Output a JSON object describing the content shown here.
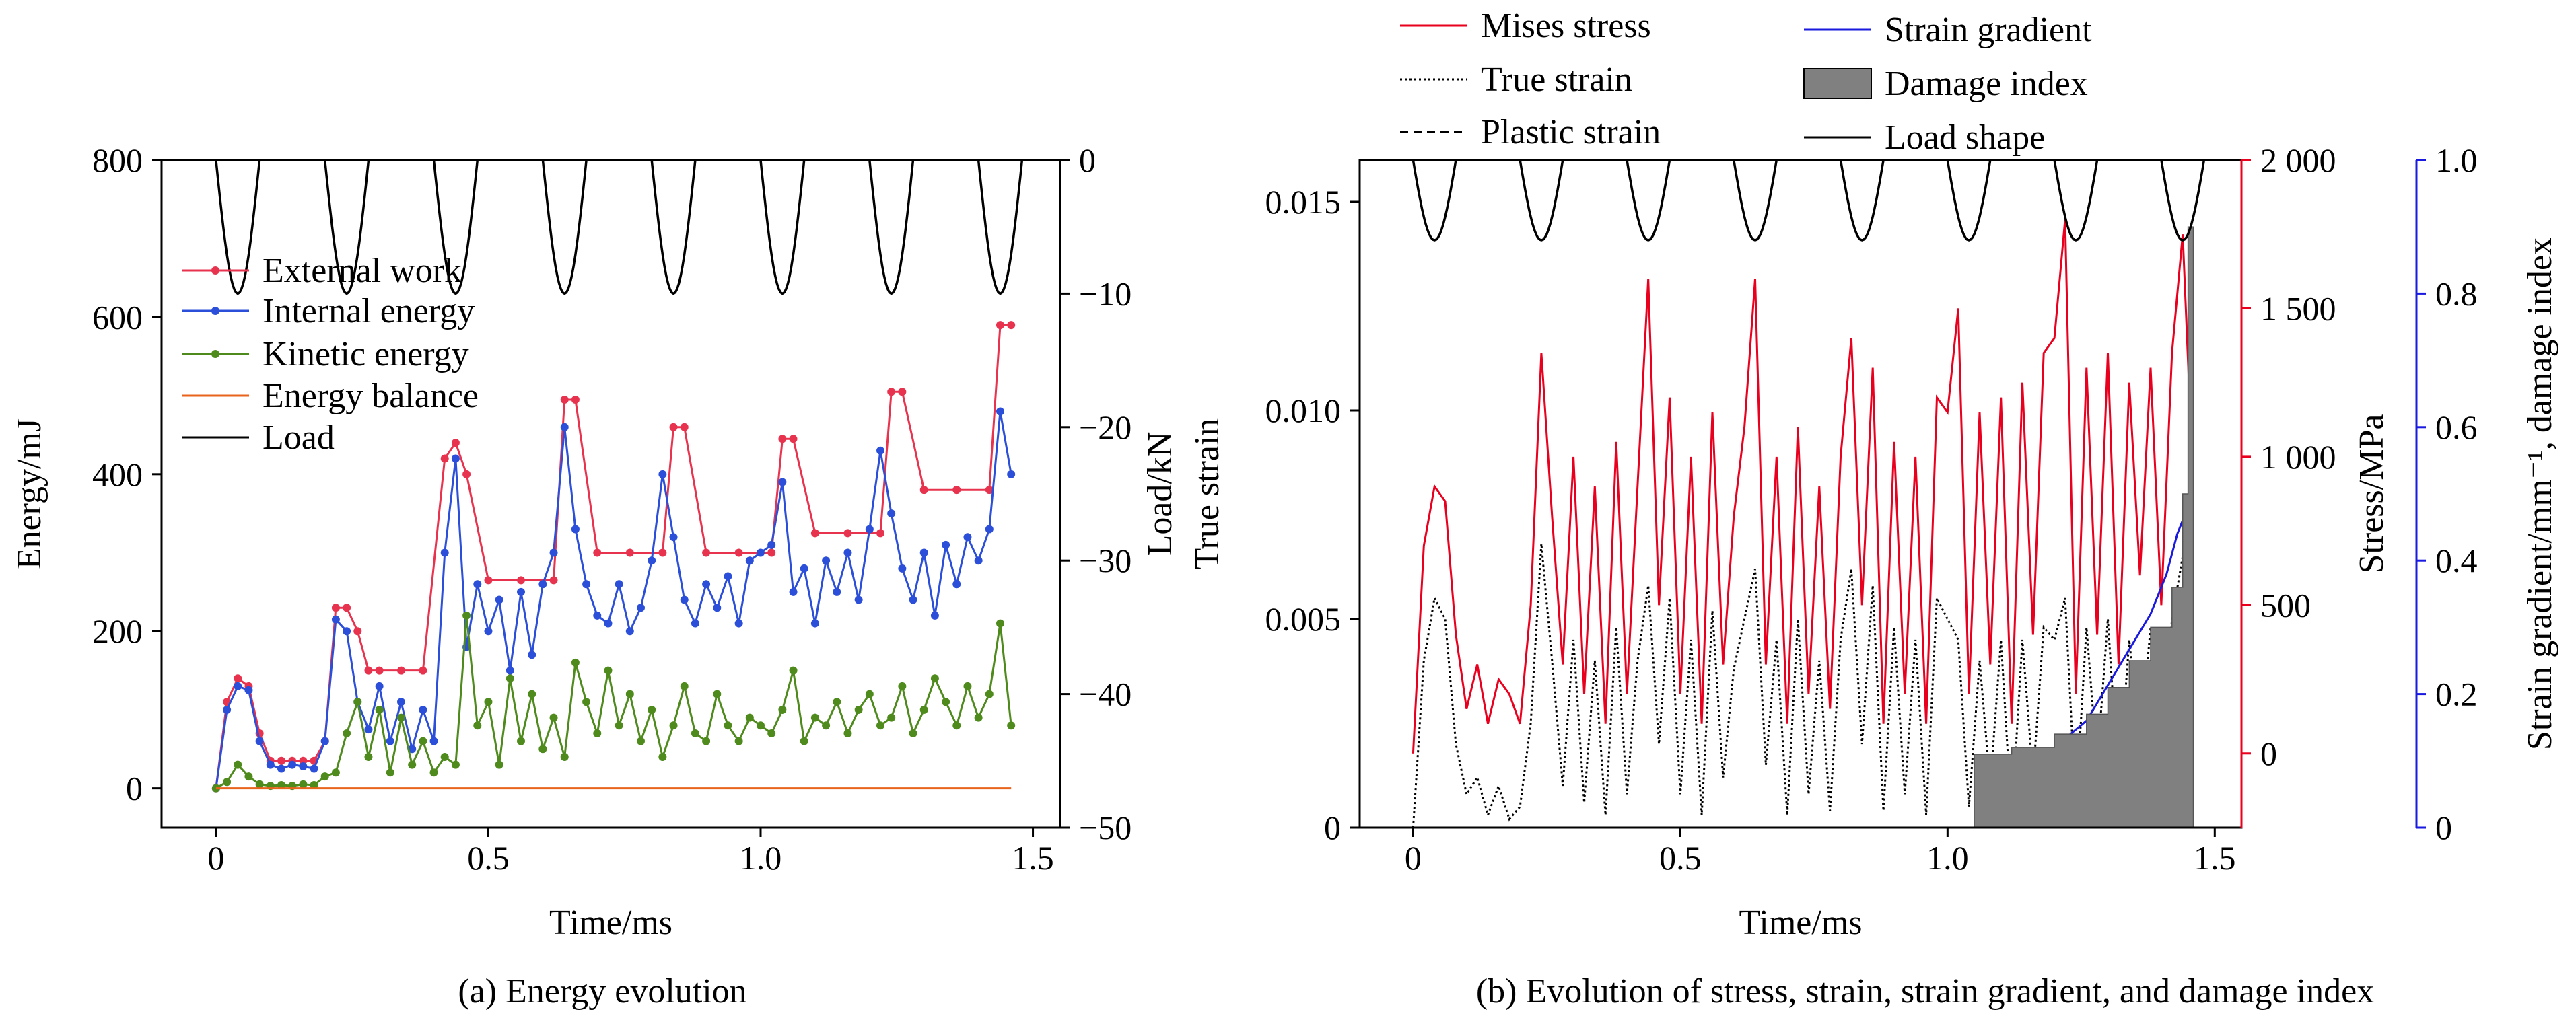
{
  "chart_data": [
    {
      "type": "line",
      "caption": "(a) Energy evolution",
      "xlabel": "Time/ms",
      "ylabel": "Energy/mJ",
      "y2label": "Load/kN",
      "xlim": [
        -0.1,
        1.55
      ],
      "ylim": [
        -50,
        800
      ],
      "y2lim": [
        -50,
        0
      ],
      "xticks": [
        0,
        0.5,
        1.0,
        1.5
      ],
      "xtick_labels": [
        "0",
        "0.5",
        "1.0",
        "1.5"
      ],
      "yticks": [
        0,
        200,
        400,
        600,
        800
      ],
      "ytick_labels": [
        "0",
        "200",
        "400",
        "600",
        "800"
      ],
      "y2ticks": [
        0,
        -10,
        -20,
        -30,
        -40,
        -50
      ],
      "y2tick_labels": [
        "0",
        "−10",
        "−20",
        "−30",
        "−40",
        "−50"
      ],
      "legend_position": "upper-left",
      "pulses": {
        "axis": "y2",
        "starts": [
          0,
          0.2,
          0.4,
          0.6,
          0.8,
          1.0,
          1.2,
          1.4
        ],
        "width": 0.08,
        "base": 0,
        "peak": -10
      },
      "series": [
        {
          "name": "External work",
          "color": "#e8334f",
          "x": [
            0,
            0.02,
            0.04,
            0.06,
            0.08,
            0.1,
            0.12,
            0.14,
            0.16,
            0.18,
            0.2,
            0.22,
            0.24,
            0.26,
            0.28,
            0.3,
            0.34,
            0.38,
            0.42,
            0.44,
            0.46,
            0.5,
            0.56,
            0.62,
            0.64,
            0.66,
            0.7,
            0.76,
            0.82,
            0.84,
            0.86,
            0.9,
            0.96,
            1.02,
            1.04,
            1.06,
            1.1,
            1.16,
            1.22,
            1.24,
            1.26,
            1.3,
            1.36,
            1.42,
            1.44,
            1.46
          ],
          "y": [
            0,
            110,
            140,
            130,
            70,
            35,
            35,
            35,
            35,
            35,
            60,
            230,
            230,
            200,
            150,
            150,
            150,
            150,
            420,
            440,
            400,
            265,
            265,
            265,
            495,
            495,
            300,
            300,
            300,
            460,
            460,
            300,
            300,
            300,
            445,
            445,
            325,
            325,
            325,
            505,
            505,
            380,
            380,
            380,
            590,
            590
          ]
        },
        {
          "name": "Internal energy",
          "color": "#2b4fd8",
          "x": [
            0,
            0.02,
            0.04,
            0.06,
            0.08,
            0.1,
            0.12,
            0.14,
            0.16,
            0.18,
            0.2,
            0.22,
            0.24,
            0.26,
            0.28,
            0.3,
            0.32,
            0.34,
            0.36,
            0.38,
            0.4,
            0.42,
            0.44,
            0.46,
            0.48,
            0.5,
            0.52,
            0.54,
            0.56,
            0.58,
            0.6,
            0.62,
            0.64,
            0.66,
            0.68,
            0.7,
            0.72,
            0.74,
            0.76,
            0.78,
            0.8,
            0.82,
            0.84,
            0.86,
            0.88,
            0.9,
            0.92,
            0.94,
            0.96,
            0.98,
            1.0,
            1.02,
            1.04,
            1.06,
            1.08,
            1.1,
            1.12,
            1.14,
            1.16,
            1.18,
            1.2,
            1.22,
            1.24,
            1.26,
            1.28,
            1.3,
            1.32,
            1.34,
            1.36,
            1.38,
            1.4,
            1.42,
            1.44,
            1.46
          ],
          "y": [
            0,
            100,
            130,
            125,
            60,
            30,
            25,
            30,
            28,
            25,
            60,
            215,
            200,
            110,
            75,
            130,
            60,
            110,
            50,
            100,
            60,
            300,
            420,
            180,
            260,
            200,
            240,
            150,
            250,
            170,
            260,
            300,
            460,
            330,
            260,
            220,
            210,
            260,
            200,
            230,
            290,
            400,
            320,
            240,
            210,
            260,
            230,
            270,
            210,
            290,
            300,
            310,
            390,
            250,
            280,
            210,
            290,
            250,
            300,
            240,
            330,
            430,
            350,
            280,
            240,
            300,
            220,
            310,
            260,
            320,
            290,
            330,
            480,
            400
          ]
        },
        {
          "name": "Kinetic energy",
          "color": "#4e8a1c",
          "x": [
            0,
            0.02,
            0.04,
            0.06,
            0.08,
            0.1,
            0.12,
            0.14,
            0.16,
            0.18,
            0.2,
            0.22,
            0.24,
            0.26,
            0.28,
            0.3,
            0.32,
            0.34,
            0.36,
            0.38,
            0.4,
            0.42,
            0.44,
            0.46,
            0.48,
            0.5,
            0.52,
            0.54,
            0.56,
            0.58,
            0.6,
            0.62,
            0.64,
            0.66,
            0.68,
            0.7,
            0.72,
            0.74,
            0.76,
            0.78,
            0.8,
            0.82,
            0.84,
            0.86,
            0.88,
            0.9,
            0.92,
            0.94,
            0.96,
            0.98,
            1.0,
            1.02,
            1.04,
            1.06,
            1.08,
            1.1,
            1.12,
            1.14,
            1.16,
            1.18,
            1.2,
            1.22,
            1.24,
            1.26,
            1.28,
            1.3,
            1.32,
            1.34,
            1.36,
            1.38,
            1.4,
            1.42,
            1.44,
            1.46
          ],
          "y": [
            0,
            8,
            30,
            15,
            5,
            3,
            4,
            3,
            5,
            4,
            15,
            20,
            70,
            110,
            40,
            100,
            20,
            90,
            30,
            60,
            20,
            40,
            30,
            220,
            80,
            110,
            30,
            140,
            60,
            120,
            50,
            90,
            40,
            160,
            110,
            70,
            150,
            80,
            120,
            60,
            100,
            40,
            80,
            130,
            70,
            60,
            120,
            80,
            60,
            90,
            80,
            70,
            100,
            150,
            60,
            90,
            80,
            110,
            70,
            100,
            120,
            80,
            90,
            130,
            70,
            100,
            140,
            110,
            80,
            130,
            90,
            120,
            210,
            80
          ]
        },
        {
          "name": "Energy balance",
          "color": "#e8641c",
          "x": [
            0,
            1.46
          ],
          "y": [
            0,
            0
          ]
        },
        {
          "name": "Load",
          "color": "#000000",
          "axis": "y2",
          "style": "pulses"
        }
      ]
    },
    {
      "type": "line",
      "caption": "(b) Evolution of stress, strain, strain gradient, and damage index",
      "xlabel": "Time/ms",
      "ylabel": "True strain",
      "y2label": "Stress/MPa",
      "y3label": "Strain gradient/mm⁻¹, damage index",
      "y2color": "#e8001e",
      "y3color": "#1a1adf",
      "xlim": [
        -0.1,
        1.55
      ],
      "ylim": [
        0,
        0.016
      ],
      "y2lim": [
        -250,
        2000
      ],
      "y3lim": [
        0,
        1.0
      ],
      "xticks": [
        0,
        0.5,
        1.0,
        1.5
      ],
      "xtick_labels": [
        "0",
        "0.5",
        "1.0",
        "1.5"
      ],
      "yticks": [
        0,
        0.005,
        0.01,
        0.015
      ],
      "ytick_labels": [
        "0",
        "0.005",
        "0.010",
        "0.015"
      ],
      "y2ticks": [
        0,
        500,
        1000,
        1500,
        2000
      ],
      "y2tick_labels": [
        "0",
        "500",
        "1 000",
        "1 500",
        "2 000"
      ],
      "y3ticks": [
        0,
        0.2,
        0.4,
        0.6,
        0.8,
        1.0
      ],
      "y3tick_labels": [
        "0",
        "0.2",
        "0.4",
        "0.6",
        "0.8",
        "1.0"
      ],
      "legend_position": "top",
      "pulses": {
        "axis": "y3",
        "starts": [
          0,
          0.2,
          0.4,
          0.6,
          0.8,
          1.0,
          1.2,
          1.4
        ],
        "width": 0.08,
        "base": 1.0,
        "peak": 0.88
      },
      "series": [
        {
          "name": "Mises stress",
          "color": "#e8001e",
          "axis": "y2",
          "x": [
            0,
            0.02,
            0.04,
            0.06,
            0.08,
            0.1,
            0.12,
            0.14,
            0.16,
            0.18,
            0.2,
            0.22,
            0.24,
            0.26,
            0.28,
            0.3,
            0.32,
            0.34,
            0.36,
            0.38,
            0.4,
            0.42,
            0.44,
            0.46,
            0.48,
            0.5,
            0.52,
            0.54,
            0.56,
            0.58,
            0.6,
            0.62,
            0.64,
            0.66,
            0.68,
            0.7,
            0.72,
            0.74,
            0.76,
            0.78,
            0.8,
            0.82,
            0.84,
            0.86,
            0.88,
            0.9,
            0.92,
            0.94,
            0.96,
            0.98,
            1.0,
            1.02,
            1.04,
            1.06,
            1.08,
            1.1,
            1.12,
            1.14,
            1.16,
            1.18,
            1.2,
            1.22,
            1.24,
            1.26,
            1.28,
            1.3,
            1.32,
            1.34,
            1.36,
            1.38,
            1.4,
            1.42,
            1.44,
            1.46
          ],
          "y": [
            0,
            700,
            900,
            850,
            400,
            150,
            300,
            100,
            250,
            200,
            100,
            500,
            1350,
            800,
            300,
            1000,
            200,
            900,
            100,
            1050,
            200,
            900,
            1600,
            500,
            1200,
            200,
            1000,
            100,
            1150,
            300,
            800,
            1100,
            1600,
            300,
            1000,
            100,
            1100,
            200,
            900,
            150,
            1000,
            1400,
            500,
            1300,
            100,
            1050,
            200,
            1000,
            100,
            1200,
            1150,
            1500,
            200,
            1150,
            300,
            1200,
            100,
            1250,
            400,
            1350,
            1400,
            1800,
            200,
            1300,
            400,
            1350,
            300,
            1250,
            600,
            1300,
            500,
            1350,
            1750,
            900
          ]
        },
        {
          "name": "True strain",
          "color": "#000000",
          "style": "dotted",
          "x": [
            0,
            0.02,
            0.04,
            0.06,
            0.08,
            0.1,
            0.12,
            0.14,
            0.16,
            0.18,
            0.2,
            0.22,
            0.24,
            0.26,
            0.28,
            0.3,
            0.32,
            0.34,
            0.36,
            0.38,
            0.4,
            0.42,
            0.44,
            0.46,
            0.48,
            0.5,
            0.52,
            0.54,
            0.56,
            0.58,
            0.6,
            0.62,
            0.64,
            0.66,
            0.68,
            0.7,
            0.72,
            0.74,
            0.76,
            0.78,
            0.8,
            0.82,
            0.84,
            0.86,
            0.88,
            0.9,
            0.92,
            0.94,
            0.96,
            0.98,
            1.0,
            1.02,
            1.04,
            1.06,
            1.08,
            1.1,
            1.12,
            1.14,
            1.16,
            1.18,
            1.2,
            1.22,
            1.24,
            1.26,
            1.28,
            1.3,
            1.32,
            1.34,
            1.36,
            1.38,
            1.4,
            1.42,
            1.44,
            1.46
          ],
          "y": [
            0,
            0.004,
            0.0055,
            0.005,
            0.002,
            0.0008,
            0.0012,
            0.0003,
            0.001,
            0.0002,
            0.0005,
            0.0025,
            0.0068,
            0.004,
            0.001,
            0.0045,
            0.0006,
            0.004,
            0.0003,
            0.0048,
            0.0008,
            0.004,
            0.0058,
            0.002,
            0.0055,
            0.0008,
            0.0045,
            0.0003,
            0.0052,
            0.0012,
            0.0038,
            0.005,
            0.0062,
            0.0015,
            0.0045,
            0.0003,
            0.005,
            0.0008,
            0.004,
            0.0004,
            0.0045,
            0.0062,
            0.002,
            0.0058,
            0.0004,
            0.0048,
            0.0008,
            0.0045,
            0.0003,
            0.0055,
            0.005,
            0.0045,
            0.0005,
            0.004,
            0.001,
            0.0045,
            0.0002,
            0.0045,
            0.0012,
            0.0048,
            0.0045,
            0.0055,
            0.0005,
            0.0048,
            0.0015,
            0.005,
            0.001,
            0.0045,
            0.002,
            0.0048,
            0.0015,
            0.005,
            0.0065,
            0.0035
          ]
        },
        {
          "name": "Plastic strain",
          "color": "#000000",
          "style": "dashed",
          "x": [
            1.1,
            1.14,
            1.14,
            1.22,
            1.22,
            1.28,
            1.28,
            1.32,
            1.32,
            1.36,
            1.36,
            1.4,
            1.4,
            1.44,
            1.44,
            1.46
          ],
          "y": [
            0.0003,
            0.0003,
            0.0008,
            0.0008,
            0.0013,
            0.0013,
            0.0018,
            0.0018,
            0.0023,
            0.0023,
            0.0028,
            0.0028,
            0.0035,
            0.0035,
            0.0045,
            0.0045
          ]
        },
        {
          "name": "Strain gradient",
          "color": "#1a1adf",
          "axis": "y3",
          "x": [
            1.14,
            1.17,
            1.2,
            1.23,
            1.26,
            1.29,
            1.32,
            1.35,
            1.38,
            1.41,
            1.43,
            1.45,
            1.46
          ],
          "y": [
            0.0,
            0.06,
            0.1,
            0.14,
            0.16,
            0.2,
            0.24,
            0.28,
            0.32,
            0.38,
            0.44,
            0.48,
            0.54
          ]
        },
        {
          "name": "Damage index",
          "color": "#808080",
          "axis": "y3",
          "style": "area",
          "x": [
            1.05,
            1.12,
            1.12,
            1.2,
            1.2,
            1.26,
            1.26,
            1.3,
            1.3,
            1.34,
            1.34,
            1.38,
            1.38,
            1.42,
            1.42,
            1.44,
            1.44,
            1.45,
            1.45,
            1.46
          ],
          "y": [
            0.11,
            0.11,
            0.12,
            0.12,
            0.14,
            0.14,
            0.17,
            0.17,
            0.21,
            0.21,
            0.25,
            0.25,
            0.3,
            0.3,
            0.36,
            0.36,
            0.5,
            0.5,
            0.9,
            0.9
          ]
        },
        {
          "name": "Load shape",
          "color": "#000000",
          "style": "pulses",
          "axis": "y3"
        }
      ]
    }
  ]
}
